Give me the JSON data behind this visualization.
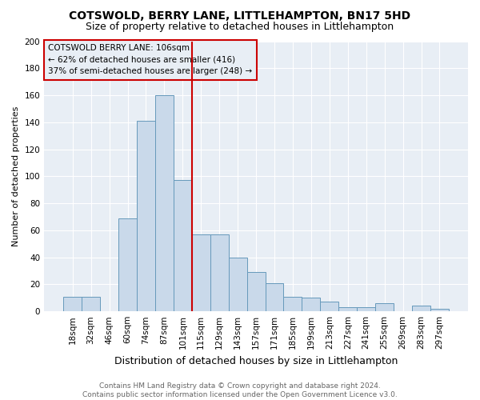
{
  "title": "COTSWOLD, BERRY LANE, LITTLEHAMPTON, BN17 5HD",
  "subtitle": "Size of property relative to detached houses in Littlehampton",
  "xlabel": "Distribution of detached houses by size in Littlehampton",
  "ylabel": "Number of detached properties",
  "footer_line1": "Contains HM Land Registry data © Crown copyright and database right 2024.",
  "footer_line2": "Contains public sector information licensed under the Open Government Licence v3.0.",
  "annotation_title": "COTSWOLD BERRY LANE: 106sqm",
  "annotation_line2": "← 62% of detached houses are smaller (416)",
  "annotation_line3": "37% of semi-detached houses are larger (248) →",
  "bar_labels": [
    "18sqm",
    "32sqm",
    "46sqm",
    "60sqm",
    "74sqm",
    "87sqm",
    "101sqm",
    "115sqm",
    "129sqm",
    "143sqm",
    "157sqm",
    "171sqm",
    "185sqm",
    "199sqm",
    "213sqm",
    "227sqm",
    "241sqm",
    "255sqm",
    "269sqm",
    "283sqm",
    "297sqm"
  ],
  "bar_heights": [
    11,
    11,
    0,
    69,
    141,
    160,
    97,
    57,
    57,
    40,
    29,
    21,
    11,
    10,
    7,
    3,
    3,
    6,
    0,
    4,
    2
  ],
  "bar_color": "#c9d9ea",
  "bar_edge_color": "#6699bb",
  "vline_color": "#cc0000",
  "vline_x": 6.5,
  "plot_bg_color": "#e8eef5",
  "fig_bg_color": "#ffffff",
  "grid_color": "#ffffff",
  "ylim": [
    0,
    200
  ],
  "yticks": [
    0,
    20,
    40,
    60,
    80,
    100,
    120,
    140,
    160,
    180,
    200
  ],
  "title_fontsize": 10,
  "subtitle_fontsize": 9,
  "xlabel_fontsize": 9,
  "ylabel_fontsize": 8,
  "tick_fontsize": 7.5,
  "annotation_fontsize": 7.5,
  "footer_fontsize": 6.5,
  "footer_color": "#666666"
}
